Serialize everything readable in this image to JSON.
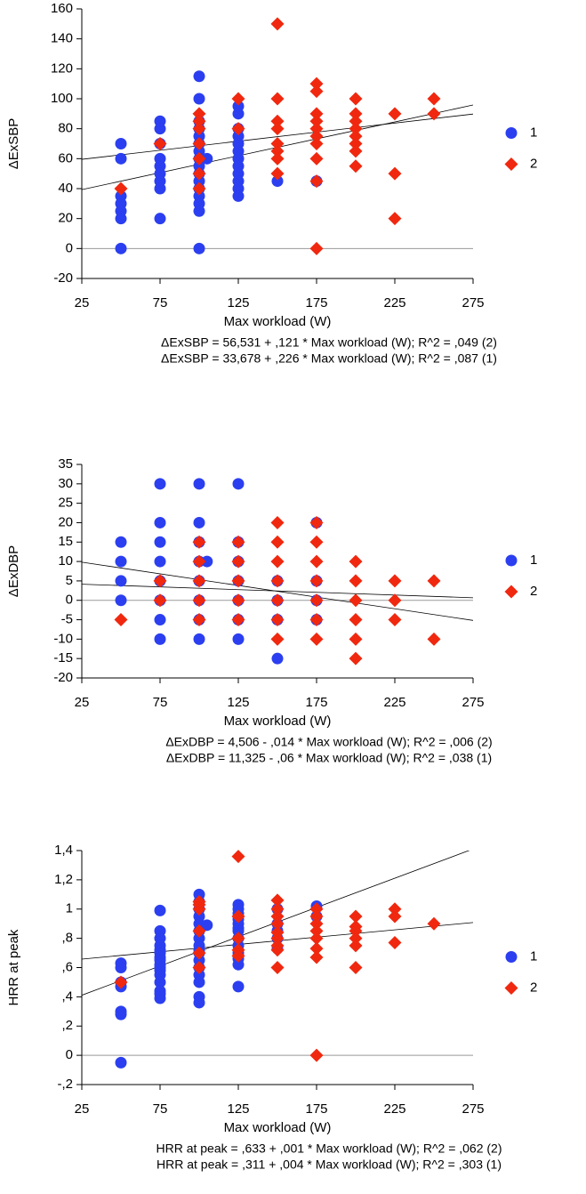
{
  "chart_data": [
    {
      "type": "scatter",
      "y_label": "ΔExSBP",
      "x_label": "Max workload (W)",
      "xlim": [
        25,
        275
      ],
      "xticks": [
        25,
        75,
        125,
        175,
        225,
        275
      ],
      "ylim": [
        -20,
        160
      ],
      "yticks": [
        -20,
        0,
        20,
        40,
        60,
        80,
        100,
        120,
        140,
        160
      ],
      "reference_y": 0,
      "legend": "right",
      "series": [
        {
          "name": "1",
          "color": "#2b3ff0",
          "marker": "circle",
          "x": [
            50,
            50,
            50,
            50,
            50,
            50,
            50,
            75,
            75,
            75,
            75,
            75,
            75,
            75,
            75,
            75,
            100,
            100,
            100,
            100,
            100,
            100,
            100,
            100,
            100,
            100,
            100,
            100,
            100,
            100,
            100,
            100,
            105,
            125,
            125,
            125,
            125,
            125,
            125,
            125,
            125,
            125,
            125,
            125,
            125,
            150,
            175
          ],
          "values": [
            70,
            60,
            35,
            30,
            25,
            20,
            0,
            85,
            80,
            70,
            60,
            55,
            50,
            45,
            40,
            20,
            115,
            100,
            85,
            80,
            75,
            70,
            65,
            60,
            55,
            50,
            45,
            40,
            35,
            30,
            25,
            0,
            60,
            95,
            90,
            80,
            75,
            70,
            65,
            60,
            55,
            50,
            45,
            40,
            35,
            45,
            45
          ]
        },
        {
          "name": "2",
          "color": "#f0280f",
          "marker": "diamond",
          "x": [
            50,
            75,
            100,
            100,
            100,
            100,
            100,
            100,
            100,
            125,
            125,
            150,
            150,
            150,
            150,
            150,
            150,
            150,
            150,
            175,
            175,
            175,
            175,
            175,
            175,
            175,
            175,
            175,
            175,
            200,
            200,
            200,
            200,
            200,
            200,
            200,
            200,
            225,
            225,
            225,
            250,
            250
          ],
          "values": [
            40,
            70,
            90,
            85,
            80,
            70,
            60,
            50,
            40,
            100,
            80,
            150,
            100,
            85,
            80,
            70,
            65,
            60,
            50,
            110,
            105,
            90,
            85,
            80,
            75,
            70,
            60,
            45,
            0,
            100,
            90,
            85,
            80,
            75,
            70,
            65,
            55,
            90,
            50,
            20,
            100,
            90
          ]
        }
      ],
      "fit_lines": [
        {
          "equation": "ΔExSBP = 56,531 + ,121 * Max workload (W); R^2 = ,049 (2)",
          "intercept": 56.531,
          "slope": 0.121
        },
        {
          "equation": "ΔExSBP = 33,678 + ,226 * Max workload (W); R^2 = ,087 (1)",
          "intercept": 33.678,
          "slope": 0.226
        }
      ]
    },
    {
      "type": "scatter",
      "y_label": "ΔExDBP",
      "x_label": "Max workload (W)",
      "xlim": [
        25,
        275
      ],
      "xticks": [
        25,
        75,
        125,
        175,
        225,
        275
      ],
      "ylim": [
        -20,
        35
      ],
      "yticks": [
        -20,
        -15,
        -10,
        -5,
        0,
        5,
        10,
        15,
        20,
        25,
        30,
        35
      ],
      "reference_y": 0,
      "legend": "right",
      "series": [
        {
          "name": "1",
          "color": "#2b3ff0",
          "marker": "circle",
          "x": [
            50,
            50,
            50,
            50,
            75,
            75,
            75,
            75,
            75,
            75,
            75,
            75,
            100,
            100,
            100,
            100,
            100,
            100,
            100,
            100,
            105,
            125,
            125,
            125,
            125,
            125,
            125,
            125,
            150,
            150,
            150,
            150,
            175,
            175,
            175,
            175
          ],
          "values": [
            15,
            10,
            5,
            0,
            30,
            20,
            15,
            10,
            5,
            0,
            -5,
            -10,
            30,
            20,
            15,
            10,
            5,
            0,
            -5,
            -10,
            10,
            30,
            15,
            10,
            5,
            0,
            -5,
            -10,
            5,
            0,
            -5,
            -15,
            20,
            5,
            0,
            -5
          ]
        },
        {
          "name": "2",
          "color": "#f0280f",
          "marker": "diamond",
          "x": [
            50,
            75,
            75,
            100,
            100,
            100,
            100,
            100,
            125,
            125,
            125,
            125,
            125,
            150,
            150,
            150,
            150,
            150,
            150,
            150,
            175,
            175,
            175,
            175,
            175,
            175,
            175,
            200,
            200,
            200,
            200,
            200,
            200,
            225,
            225,
            225,
            250,
            250
          ],
          "values": [
            -5,
            5,
            0,
            15,
            10,
            5,
            0,
            -5,
            15,
            10,
            5,
            0,
            -5,
            20,
            15,
            10,
            5,
            0,
            -5,
            -10,
            20,
            15,
            10,
            5,
            0,
            -5,
            -10,
            10,
            5,
            0,
            -5,
            -10,
            -15,
            5,
            0,
            -5,
            5,
            -10
          ]
        }
      ],
      "fit_lines": [
        {
          "equation": "ΔExDBP = 4,506 - ,014 * Max workload (W); R^2 = ,006 (2)",
          "intercept": 4.506,
          "slope": -0.014
        },
        {
          "equation": "ΔExDBP = 11,325 - ,06 * Max workload (W); R^2 = ,038 (1)",
          "intercept": 11.325,
          "slope": -0.06
        }
      ]
    },
    {
      "type": "scatter",
      "y_label": "HRR at peak",
      "x_label": "Max workload (W)",
      "xlim": [
        25,
        275
      ],
      "xticks": [
        25,
        75,
        125,
        175,
        225,
        275
      ],
      "ylim": [
        -0.2,
        1.4
      ],
      "yticks": [
        {
          "value": -0.2,
          "label": "-,2"
        },
        0,
        {
          "value": 0.2,
          "label": ",2"
        },
        {
          "value": 0.4,
          "label": ",4"
        },
        {
          "value": 0.6,
          "label": ",6"
        },
        {
          "value": 0.8,
          "label": ",8"
        },
        1,
        {
          "value": 1.2,
          "label": "1,2"
        },
        {
          "value": 1.4,
          "label": "1,4"
        }
      ],
      "reference_y": 0,
      "legend": "right",
      "series": [
        {
          "name": "1",
          "color": "#2b3ff0",
          "marker": "circle",
          "x": [
            50,
            50,
            50,
            50,
            50,
            50,
            50,
            75,
            75,
            75,
            75,
            75,
            75,
            75,
            75,
            75,
            75,
            75,
            75,
            75,
            75,
            75,
            75,
            100,
            100,
            100,
            100,
            100,
            100,
            100,
            100,
            100,
            100,
            100,
            100,
            100,
            100,
            100,
            100,
            105,
            125,
            125,
            125,
            125,
            125,
            125,
            125,
            125,
            125,
            125,
            125,
            125,
            125,
            150,
            150,
            150,
            150,
            150,
            175,
            175
          ],
          "values": [
            0.63,
            0.6,
            0.5,
            0.47,
            0.3,
            0.28,
            -0.05,
            0.99,
            0.85,
            0.8,
            0.75,
            0.72,
            0.7,
            0.67,
            0.65,
            0.62,
            0.6,
            0.58,
            0.55,
            0.5,
            0.44,
            0.42,
            0.39,
            1.1,
            1.05,
            1.0,
            0.95,
            0.9,
            0.85,
            0.8,
            0.75,
            0.72,
            0.7,
            0.65,
            0.6,
            0.55,
            0.5,
            0.4,
            0.36,
            0.89,
            1.03,
            1.0,
            0.97,
            0.93,
            0.9,
            0.87,
            0.85,
            0.8,
            0.75,
            0.7,
            0.66,
            0.62,
            0.47,
            1.0,
            0.9,
            0.85,
            0.8,
            0.73,
            1.02,
            0.95
          ]
        },
        {
          "name": "2",
          "color": "#f0280f",
          "marker": "diamond",
          "x": [
            50,
            100,
            100,
            100,
            100,
            100,
            100,
            125,
            125,
            125,
            125,
            125,
            150,
            150,
            150,
            150,
            150,
            150,
            150,
            150,
            150,
            175,
            175,
            175,
            175,
            175,
            175,
            175,
            175,
            200,
            200,
            200,
            200,
            200,
            200,
            225,
            225,
            225,
            250
          ],
          "values": [
            0.5,
            1.05,
            1.03,
            1.0,
            0.85,
            0.7,
            0.6,
            1.36,
            0.95,
            0.8,
            0.72,
            0.68,
            1.06,
            1.0,
            0.95,
            0.9,
            0.84,
            0.8,
            0.75,
            0.72,
            0.6,
            1.0,
            0.95,
            0.9,
            0.85,
            0.8,
            0.73,
            0.67,
            0.0,
            0.95,
            0.88,
            0.85,
            0.8,
            0.75,
            0.6,
            1.0,
            0.95,
            0.77,
            0.9
          ]
        }
      ],
      "fit_lines": [
        {
          "equation": "HRR at peak = ,633 + ,001 * Max workload (W); R^2 = ,062 (2)",
          "intercept": 0.633,
          "slope": 0.001
        },
        {
          "equation": "HRR at peak = ,311 + ,004 * Max workload (W); R^2 = ,303 (1)",
          "intercept": 0.311,
          "slope": 0.004
        }
      ]
    }
  ]
}
